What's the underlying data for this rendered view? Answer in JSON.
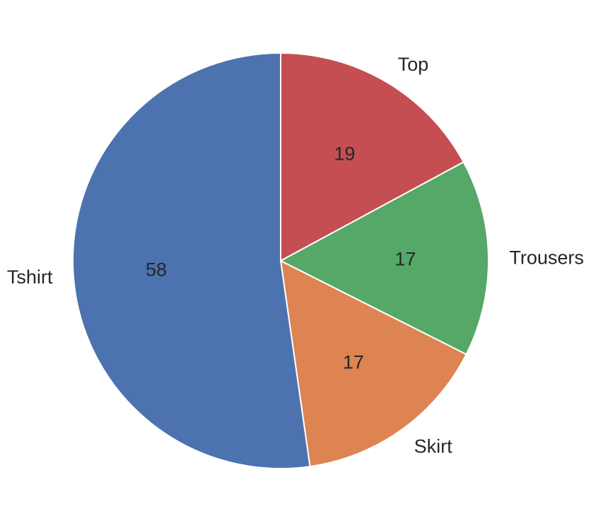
{
  "chart_data": {
    "type": "pie",
    "categories": [
      "Top",
      "Trousers",
      "Skirt",
      "Tshirt"
    ],
    "values": [
      19,
      17,
      17,
      58
    ],
    "colors": [
      "#c44e52",
      "#55a868",
      "#dd8452",
      "#4c72b0"
    ],
    "start_angle": "12 o'clock",
    "direction": "clockwise",
    "title": "",
    "legend": "none"
  }
}
